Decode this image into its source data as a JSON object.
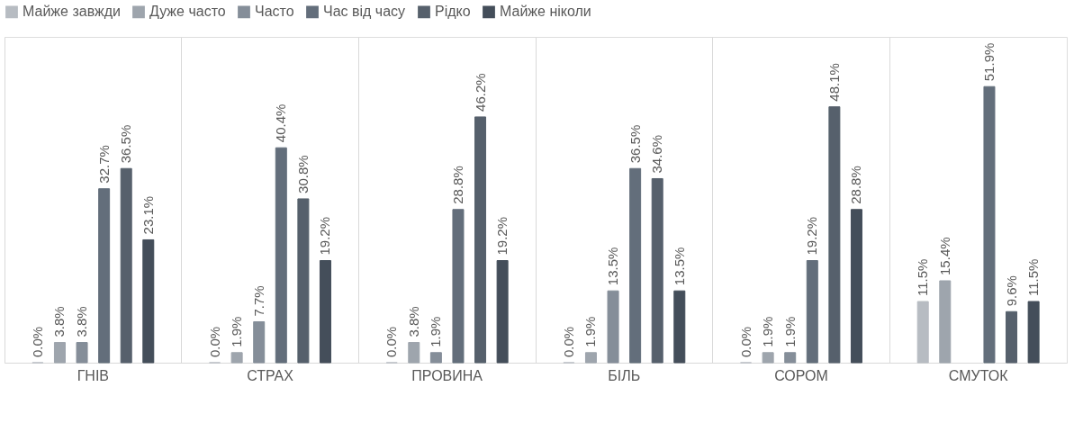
{
  "chart_data": {
    "type": "bar",
    "categories": [
      "ГНІВ",
      "СТРАХ",
      "ПРОВИНА",
      "БІЛЬ",
      "СОРОМ",
      "СМУТОК"
    ],
    "series": [
      {
        "name": "Майже завжди",
        "color": "#b7bcc2",
        "values": [
          0.0,
          0.0,
          0.0,
          0.0,
          0.0,
          11.5
        ],
        "value_labels": [
          "0.0%",
          "0.0%",
          "0.0%",
          "0.0%",
          "0.0%",
          "11.5%"
        ]
      },
      {
        "name": "Дуже часто",
        "color": "#9ea5ad",
        "values": [
          3.8,
          1.9,
          3.8,
          1.9,
          1.9,
          15.4
        ],
        "value_labels": [
          "3.8%",
          "1.9%",
          "3.8%",
          "1.9%",
          "1.9%",
          "15.4%"
        ]
      },
      {
        "name": "Часто",
        "color": "#858e99",
        "values": [
          3.8,
          7.7,
          1.9,
          13.5,
          1.9,
          null
        ],
        "value_labels": [
          "3.8%",
          "7.7%",
          "1.9%",
          "13.5%",
          "1.9%",
          null
        ]
      },
      {
        "name": "Час від часу",
        "color": "#636e7b",
        "values": [
          32.7,
          40.4,
          28.8,
          36.5,
          19.2,
          51.9
        ],
        "value_labels": [
          "32.7%",
          "40.4%",
          "28.8%",
          "36.5%",
          "19.2%",
          "51.9%"
        ]
      },
      {
        "name": "Рідко",
        "color": "#56606c",
        "values": [
          36.5,
          30.8,
          46.2,
          34.6,
          48.1,
          9.6
        ],
        "value_labels": [
          "36.5%",
          "30.8%",
          "46.2%",
          "34.6%",
          "48.1%",
          "9.6%"
        ]
      },
      {
        "name": "Майже ніколи",
        "color": "#444e5a",
        "values": [
          23.1,
          19.2,
          19.2,
          13.5,
          28.8,
          11.5
        ],
        "value_labels": [
          "23.1%",
          "19.2%",
          "19.2%",
          "13.5%",
          "28.8%",
          "11.5%"
        ]
      }
    ],
    "legend": "top",
    "grid": "x"
  }
}
